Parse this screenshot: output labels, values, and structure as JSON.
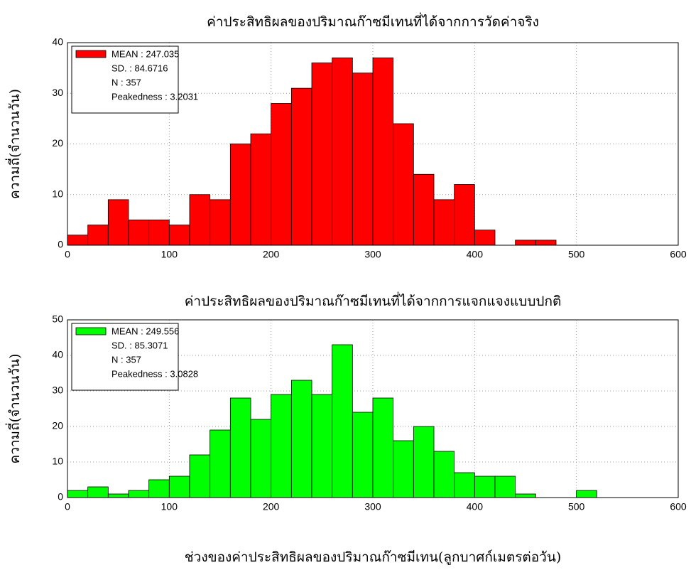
{
  "chart_data": [
    {
      "type": "histogram",
      "title": "ค่าประสิทธิผลของปริมาณก๊าซมีเทนที่ได้จากการวัดค่าจริง",
      "ylabel": "ความถี่(จำนวนวัน)",
      "bins": [
        0,
        20,
        40,
        60,
        80,
        100,
        120,
        140,
        160,
        180,
        200,
        220,
        240,
        260,
        280,
        300,
        320,
        340,
        360,
        380,
        400,
        420,
        440,
        460,
        480
      ],
      "counts": [
        2,
        4,
        9,
        5,
        5,
        4,
        10,
        9,
        20,
        22,
        28,
        31,
        36,
        37,
        34,
        37,
        24,
        14,
        9,
        12,
        3,
        0,
        1,
        1
      ],
      "color": "#ff0000",
      "xlim": [
        0,
        600
      ],
      "ylim": [
        0,
        40
      ],
      "xticks": [
        0,
        100,
        200,
        300,
        400,
        500,
        600
      ],
      "yticks": [
        0,
        10,
        20,
        30,
        40
      ],
      "grid": true,
      "legend": [
        "MEAN : 247.035",
        "SD. : 84.6716",
        "N : 357",
        "Peakedness : 3.2031"
      ]
    },
    {
      "type": "histogram",
      "title": "ค่าประสิทธิผลของปริมาณก๊าซมีเทนที่ได้จากการแจกแจงแบบปกติ",
      "ylabel": "ความถี่(จำนวนวัน)",
      "xlabel": "ช่วงของค่าประสิทธิผลของปริมาณก๊าซมีเทน(ลูกบาศก์เมตรต่อวัน)",
      "bins": [
        0,
        20,
        40,
        60,
        80,
        100,
        120,
        140,
        160,
        180,
        200,
        220,
        240,
        260,
        280,
        300,
        320,
        340,
        360,
        380,
        400,
        420,
        440,
        460,
        480,
        500,
        520
      ],
      "counts": [
        2,
        3,
        1,
        2,
        5,
        6,
        12,
        19,
        28,
        22,
        29,
        33,
        29,
        43,
        24,
        28,
        16,
        20,
        13,
        7,
        6,
        6,
        1,
        0,
        0,
        2
      ],
      "color": "#00ff00",
      "xlim": [
        0,
        600
      ],
      "ylim": [
        0,
        50
      ],
      "xticks": [
        0,
        100,
        200,
        300,
        400,
        500,
        600
      ],
      "yticks": [
        0,
        10,
        20,
        30,
        40,
        50
      ],
      "grid": true,
      "legend": [
        "MEAN : 249.556",
        "SD. : 85.3071",
        "N : 357",
        "Peakedness : 3.0828"
      ]
    }
  ]
}
